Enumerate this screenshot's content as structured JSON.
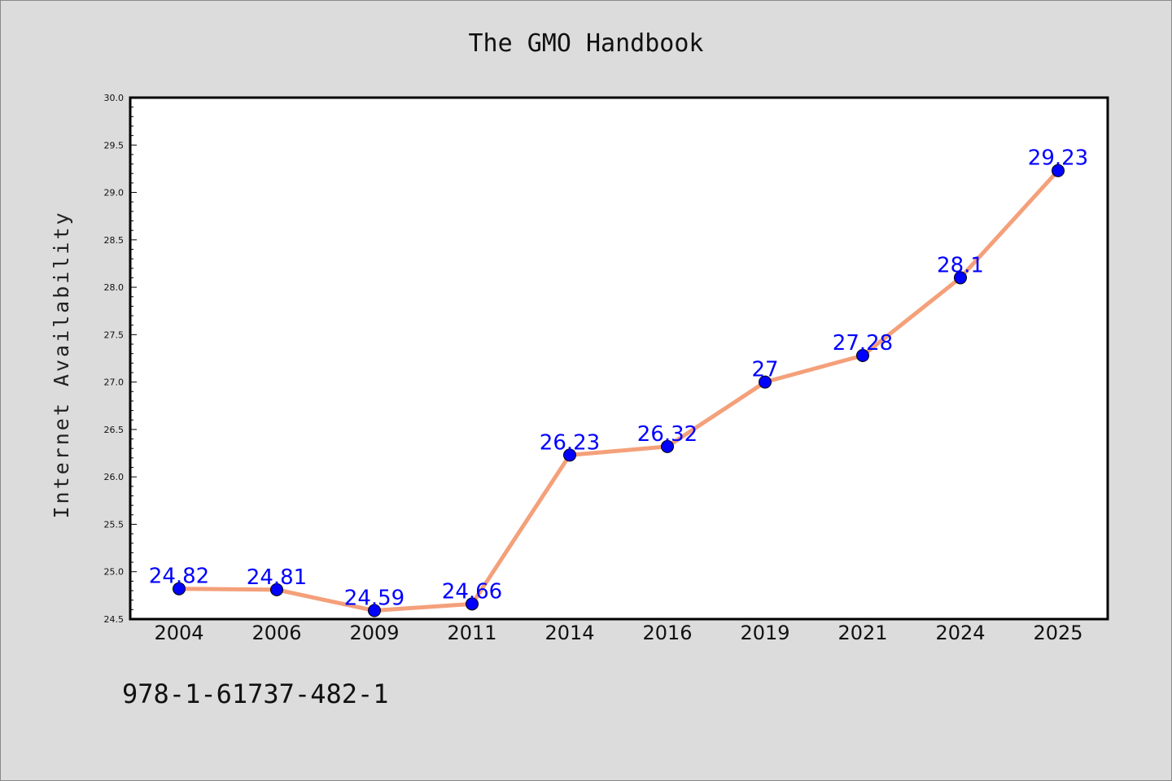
{
  "chart_data": {
    "type": "line",
    "title": "The GMO Handbook",
    "xlabel": "",
    "ylabel": "Internet Availability",
    "categories": [
      "2004",
      "2006",
      "2009",
      "2011",
      "2014",
      "2016",
      "2019",
      "2021",
      "2024",
      "2025"
    ],
    "series": [
      {
        "values": [
          24.82,
          24.81,
          24.59,
          24.66,
          26.23,
          26.32,
          27.0,
          27.28,
          28.1,
          29.23
        ],
        "labels": [
          "24.82",
          "24.81",
          "24.59",
          "24.66",
          "26.23",
          "26.32",
          "27",
          "27.28",
          "28.1",
          "29.23"
        ]
      }
    ],
    "ylim": [
      24.5,
      30.0
    ],
    "yticks": [
      "24.5",
      "25.0",
      "25.5",
      "26.0",
      "26.5",
      "27.0",
      "27.5",
      "28.0",
      "28.5",
      "29.0",
      "29.5",
      "30.0"
    ],
    "grid": false,
    "line_color": "#f4a07a",
    "marker_color": "#0000ff",
    "label_color": "#0000ff"
  },
  "footnote": "978-1-61737-482-1"
}
